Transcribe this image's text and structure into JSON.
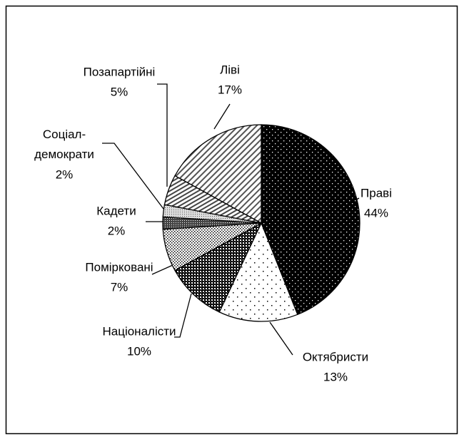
{
  "chart_data": {
    "type": "pie",
    "categories": [
      "Праві",
      "Октябристи",
      "Націоналісти",
      "Помірковані",
      "Кадети",
      "Соціал-демократи",
      "Позапартійні",
      "Ліві"
    ],
    "values": [
      44,
      13,
      10,
      7,
      2,
      2,
      5,
      17
    ],
    "value_labels": [
      "44%",
      "13%",
      "10%",
      "7%",
      "2%",
      "2%",
      "5%",
      "17%"
    ]
  }
}
